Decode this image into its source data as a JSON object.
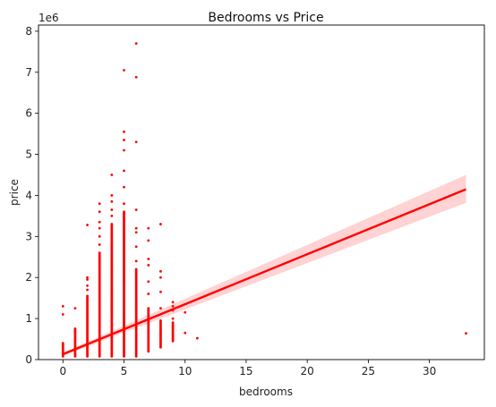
{
  "chart_data": {
    "type": "scatter",
    "title": "Bedrooms vs Price",
    "xlabel": "bedrooms",
    "ylabel": "price",
    "y_offset_label": "1e6",
    "xlim": [
      -2,
      34.5
    ],
    "ylim": [
      0,
      8.15
    ],
    "xticks": [
      0,
      5,
      10,
      15,
      20,
      25,
      30
    ],
    "yticks": [
      0,
      1,
      2,
      3,
      4,
      5,
      6,
      7,
      8
    ],
    "color": "#ff0000",
    "band_color": "#ffc8c8",
    "grid": false,
    "scatter_columns": [
      {
        "x": 0,
        "ymin": 0.08,
        "ymax": 0.4,
        "outliers": [
          1.1,
          1.3
        ]
      },
      {
        "x": 1,
        "ymin": 0.08,
        "ymax": 0.75,
        "outliers": [
          1.25
        ]
      },
      {
        "x": 2,
        "ymin": 0.08,
        "ymax": 1.55,
        "outliers": [
          1.7,
          1.8,
          1.95,
          2.0,
          3.28
        ]
      },
      {
        "x": 3,
        "ymin": 0.08,
        "ymax": 2.6,
        "outliers": [
          2.8,
          3.0,
          3.2,
          3.35,
          3.6,
          3.8
        ]
      },
      {
        "x": 4,
        "ymin": 0.08,
        "ymax": 3.3,
        "outliers": [
          3.5,
          3.65,
          3.85,
          4.0,
          4.5
        ]
      },
      {
        "x": 5,
        "ymin": 0.08,
        "ymax": 3.6,
        "outliers": [
          3.8,
          4.2,
          4.6,
          5.1,
          5.35,
          5.55,
          7.05
        ]
      },
      {
        "x": 6,
        "ymin": 0.08,
        "ymax": 2.2,
        "outliers": [
          2.4,
          2.75,
          3.1,
          3.2,
          3.65,
          5.3,
          6.88,
          7.7
        ]
      },
      {
        "x": 7,
        "ymin": 0.2,
        "ymax": 1.25,
        "outliers": [
          1.6,
          1.9,
          2.3,
          2.45,
          2.9,
          3.2
        ]
      },
      {
        "x": 8,
        "ymin": 0.3,
        "ymax": 0.95,
        "outliers": [
          1.25,
          1.65,
          2.0,
          2.15,
          3.3
        ]
      },
      {
        "x": 9,
        "ymin": 0.45,
        "ymax": 0.9,
        "outliers": [
          1.0,
          1.2,
          1.3,
          1.4
        ]
      },
      {
        "x": 10,
        "ymin": 0.65,
        "ymax": 0.65,
        "outliers": [
          1.15
        ]
      },
      {
        "x": 11,
        "ymin": 0.52,
        "ymax": 0.52,
        "outliers": []
      },
      {
        "x": 33,
        "ymin": 0.64,
        "ymax": 0.64,
        "outliers": []
      }
    ],
    "regression": {
      "x": [
        0,
        33
      ],
      "y": [
        0.13,
        4.15
      ],
      "band_lower": [
        0.09,
        3.82
      ],
      "band_upper": [
        0.17,
        4.5
      ]
    }
  }
}
